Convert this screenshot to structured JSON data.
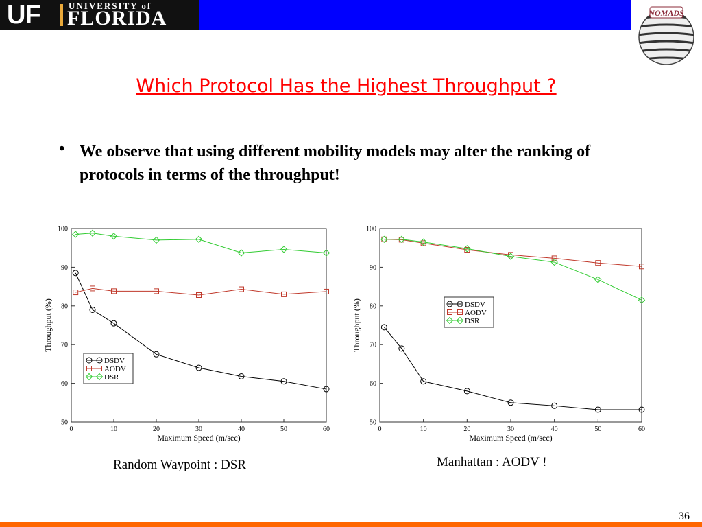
{
  "header": {
    "logo_short": "UF",
    "logo_university": "UNIVERSITY of",
    "logo_name": "FLORIDA",
    "right_logo": "NOMADS",
    "bar_color": "#0000ff"
  },
  "slide": {
    "title": "Which Protocol Has the Highest Throughput ?",
    "bullet": "We observe that using different mobility models may alter the ranking of protocols in terms of the throughput!",
    "caption_left": "Random Waypoint  :  DSR",
    "caption_right": "Manhattan  :  AODV !",
    "page_number": "36"
  },
  "colors": {
    "title": "#ff0000",
    "footer": "#ff6600",
    "dsdv": "#000000",
    "aodv": "#c0392b",
    "dsr": "#33cc33"
  },
  "chart_data": [
    {
      "type": "line",
      "title": "",
      "xlabel": "Maximum Speed (m/sec)",
      "ylabel": "Throughput (%)",
      "xlim": [
        0,
        60
      ],
      "ylim": [
        50,
        100
      ],
      "xticks": [
        0,
        10,
        20,
        30,
        40,
        50,
        60
      ],
      "yticks": [
        50,
        60,
        70,
        80,
        90,
        100
      ],
      "legend": "bottom-left",
      "series": [
        {
          "name": "DSDV",
          "marker": "circle",
          "x": [
            1,
            5,
            10,
            20,
            30,
            40,
            50,
            60
          ],
          "values": [
            88.5,
            79,
            75.5,
            67.5,
            64,
            61.8,
            60.5,
            58.5
          ]
        },
        {
          "name": "AODV",
          "marker": "square",
          "x": [
            1,
            5,
            10,
            20,
            30,
            40,
            50,
            60
          ],
          "values": [
            83.5,
            84.5,
            83.8,
            83.8,
            82.8,
            84.3,
            83,
            83.7
          ]
        },
        {
          "name": "DSR",
          "marker": "diamond",
          "x": [
            1,
            5,
            10,
            20,
            30,
            40,
            50,
            60
          ],
          "values": [
            98.5,
            98.8,
            98,
            97,
            97.2,
            93.7,
            94.6,
            93.7
          ]
        }
      ]
    },
    {
      "type": "line",
      "title": "",
      "xlabel": "Maximum Speed (m/sec)",
      "ylabel": "Throughput (%)",
      "xlim": [
        0,
        60
      ],
      "ylim": [
        50,
        100
      ],
      "xticks": [
        0,
        10,
        20,
        30,
        40,
        50,
        60
      ],
      "yticks": [
        50,
        60,
        70,
        80,
        90,
        100
      ],
      "legend": "middle-center",
      "series": [
        {
          "name": "DSDV",
          "marker": "circle",
          "x": [
            1,
            5,
            10,
            20,
            30,
            40,
            50,
            60
          ],
          "values": [
            74.5,
            69,
            60.5,
            58,
            55,
            54.2,
            53.2,
            53.2
          ]
        },
        {
          "name": "AODV",
          "marker": "square",
          "x": [
            1,
            5,
            10,
            20,
            30,
            40,
            50,
            60
          ],
          "values": [
            97.2,
            97.1,
            96.2,
            94.5,
            93.2,
            92.3,
            91.1,
            90.2
          ]
        },
        {
          "name": "DSR",
          "marker": "diamond",
          "x": [
            1,
            5,
            10,
            20,
            30,
            40,
            50,
            60
          ],
          "values": [
            97.2,
            97.2,
            96.5,
            94.8,
            92.8,
            91.3,
            86.8,
            81.5
          ]
        }
      ]
    }
  ]
}
